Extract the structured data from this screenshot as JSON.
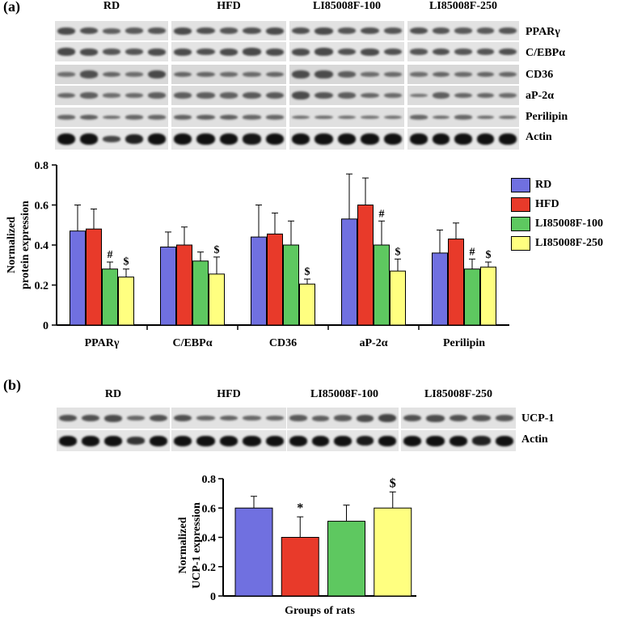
{
  "colors": {
    "RD": "#7070e0",
    "HFD": "#e83a2a",
    "LI100": "#5ec860",
    "LI250": "#ffff80",
    "blot_bg": "#e4e4e4",
    "band": "#3a3a3a"
  },
  "panel_a": {
    "label": "(a)",
    "groups": [
      "RD",
      "HFD",
      "LI85008F-100",
      "LI85008F-250"
    ],
    "proteins": [
      "PPARγ",
      "C/EBPα",
      "CD36",
      "aP-2α",
      "Perilipin",
      "Actin"
    ]
  },
  "panel_b": {
    "label": "(b)",
    "groups": [
      "RD",
      "HFD",
      "LI85008F-100",
      "LI85008F-250"
    ],
    "proteins": [
      "UCP-1",
      "Actin"
    ]
  },
  "chart_data": [
    {
      "type": "bar",
      "ylabel": "Normalized\nprotein expression",
      "ylim": [
        0,
        0.8
      ],
      "yticks": [
        "0",
        "0.2",
        "0.4",
        "0.6",
        "0.8"
      ],
      "categories": [
        "PPARγ",
        "C/EBPα",
        "CD36",
        "aP-2α",
        "Perilipin"
      ],
      "legend_position": "right",
      "series": [
        {
          "name": "RD",
          "values": [
            0.47,
            0.39,
            0.44,
            0.53,
            0.36
          ],
          "errors": [
            0.13,
            0.075,
            0.16,
            0.225,
            0.115
          ]
        },
        {
          "name": "HFD",
          "values": [
            0.48,
            0.4,
            0.455,
            0.6,
            0.43
          ],
          "errors": [
            0.1,
            0.09,
            0.105,
            0.135,
            0.08
          ]
        },
        {
          "name": "LI85008F-100",
          "values": [
            0.28,
            0.32,
            0.4,
            0.4,
            0.28
          ],
          "errors": [
            0.035,
            0.045,
            0.12,
            0.12,
            0.05
          ]
        },
        {
          "name": "LI85008F-250",
          "values": [
            0.24,
            0.255,
            0.205,
            0.27,
            0.29
          ],
          "errors": [
            0.04,
            0.085,
            0.025,
            0.06,
            0.025
          ]
        }
      ],
      "annotations": [
        {
          "category": 0,
          "series": 2,
          "text": "#"
        },
        {
          "category": 0,
          "series": 3,
          "text": "$"
        },
        {
          "category": 1,
          "series": 3,
          "text": "$"
        },
        {
          "category": 2,
          "series": 3,
          "text": "$"
        },
        {
          "category": 3,
          "series": 2,
          "text": "#"
        },
        {
          "category": 3,
          "series": 3,
          "text": "$"
        },
        {
          "category": 4,
          "series": 2,
          "text": "#"
        },
        {
          "category": 4,
          "series": 3,
          "text": "$"
        }
      ]
    },
    {
      "type": "bar",
      "xlabel": "Groups of rats",
      "ylabel": "Normalized\nUCP-1 expression",
      "ylim": [
        0,
        0.8
      ],
      "yticks": [
        "0",
        "0.2",
        "0.4",
        "0.6",
        "0.8"
      ],
      "categories": [
        "RD",
        "HFD",
        "LI85008F-100",
        "LI85008F-250"
      ],
      "values": [
        0.6,
        0.4,
        0.51,
        0.6
      ],
      "errors": [
        0.08,
        0.14,
        0.11,
        0.11
      ],
      "annotations": [
        {
          "index": 1,
          "text": "*"
        },
        {
          "index": 3,
          "text": "$"
        }
      ]
    }
  ]
}
